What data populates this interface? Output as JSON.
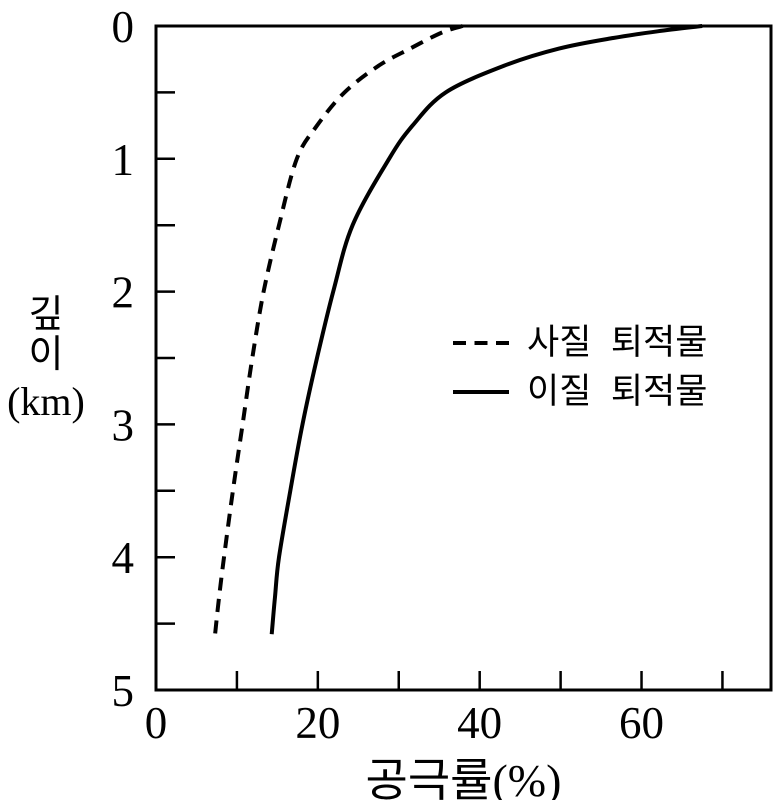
{
  "chart_data": {
    "type": "line",
    "title": "",
    "xlabel": "공극률(%)",
    "ylabel": "깊이 (km)",
    "ylabel_lines": [
      "깊",
      "이",
      "(km)"
    ],
    "x_range": [
      0,
      76
    ],
    "y_range": [
      0,
      5
    ],
    "y_axis_direction": "depth-increases-downward",
    "grid": false,
    "legend_position": "inside-right-middle",
    "colors": {
      "background": "#ffffff",
      "line": "#000000"
    },
    "x_ticks_minor_and_major": [
      10,
      20,
      30,
      40,
      50,
      60,
      70
    ],
    "x_tick_labels": [
      {
        "v": 0,
        "t": "0"
      },
      {
        "v": 20,
        "t": "20"
      },
      {
        "v": 40,
        "t": "40"
      },
      {
        "v": 60,
        "t": "60"
      }
    ],
    "y_ticks_minor_and_major": [
      0.5,
      1,
      1.5,
      2,
      2.5,
      3,
      3.5,
      4,
      4.5
    ],
    "y_tick_labels": [
      {
        "v": 0,
        "t": "0"
      },
      {
        "v": 1,
        "t": "1"
      },
      {
        "v": 2,
        "t": "2"
      },
      {
        "v": 3,
        "t": "3"
      },
      {
        "v": 4,
        "t": "4"
      },
      {
        "v": 5,
        "t": "5"
      }
    ],
    "point_format": "[depth_km, porosity_pct]",
    "series": [
      {
        "name": "사질  퇴적물",
        "line_style": "dashed",
        "points": [
          [
            0,
            37.9
          ],
          [
            0.05,
            35.3
          ],
          [
            0.17,
            31.4
          ],
          [
            0.3,
            27.5
          ],
          [
            0.5,
            23.3
          ],
          [
            0.75,
            19.9
          ],
          [
            1,
            17.4
          ],
          [
            1.5,
            15.2
          ],
          [
            2,
            13.3
          ],
          [
            2.5,
            11.9
          ],
          [
            3,
            10.7
          ],
          [
            3.5,
            9.5
          ],
          [
            4,
            8.4
          ],
          [
            4.3,
            7.8
          ],
          [
            4.58,
            7.3
          ]
        ]
      },
      {
        "name": "이질  퇴적물",
        "line_style": "solid",
        "points": [
          [
            0,
            67.5
          ],
          [
            0.04,
            62.0
          ],
          [
            0.09,
            56.5
          ],
          [
            0.17,
            49.8
          ],
          [
            0.3,
            43.0
          ],
          [
            0.5,
            35.8
          ],
          [
            0.75,
            31.7
          ],
          [
            1,
            28.8
          ],
          [
            1.5,
            24.3
          ],
          [
            2,
            21.9
          ],
          [
            2.5,
            19.9
          ],
          [
            3,
            18.1
          ],
          [
            3.5,
            16.6
          ],
          [
            4,
            15.2
          ],
          [
            4.3,
            14.7
          ],
          [
            4.58,
            14.3
          ]
        ]
      }
    ]
  }
}
